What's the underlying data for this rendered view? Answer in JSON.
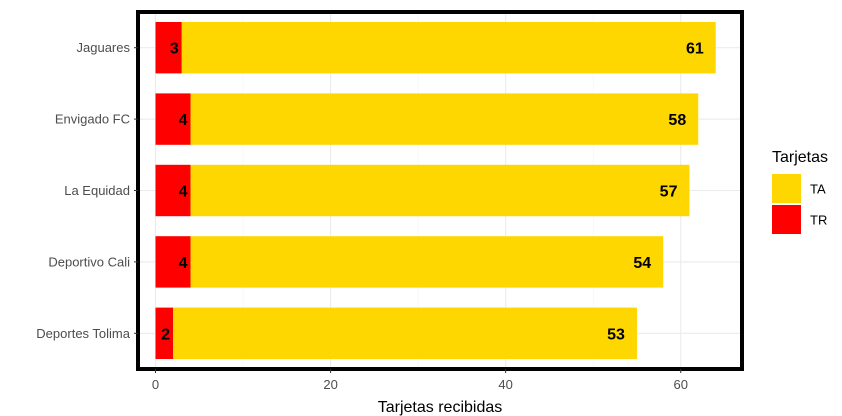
{
  "chart_data": {
    "type": "bar",
    "orientation": "horizontal",
    "stacked": true,
    "categories": [
      "Jaguares",
      "Envigado FC",
      "La Equidad",
      "Deportivo Cali",
      "Deportes Tolima"
    ],
    "series": [
      {
        "name": "TR",
        "values": [
          3,
          4,
          4,
          4,
          2
        ],
        "color": "#ff0000"
      },
      {
        "name": "TA",
        "values": [
          61,
          58,
          57,
          54,
          53
        ],
        "color": "#ffd700"
      }
    ],
    "xlabel": "Tarjetas recibidas",
    "ylabel": "",
    "xlim": [
      -2,
      67
    ],
    "xticks": [
      0,
      20,
      40,
      60
    ],
    "grid": true,
    "legend": {
      "title": "Tarjetas",
      "position": "right",
      "entries": [
        {
          "label": "TA",
          "color": "#ffd700"
        },
        {
          "label": "TR",
          "color": "#ff0000"
        }
      ]
    }
  }
}
